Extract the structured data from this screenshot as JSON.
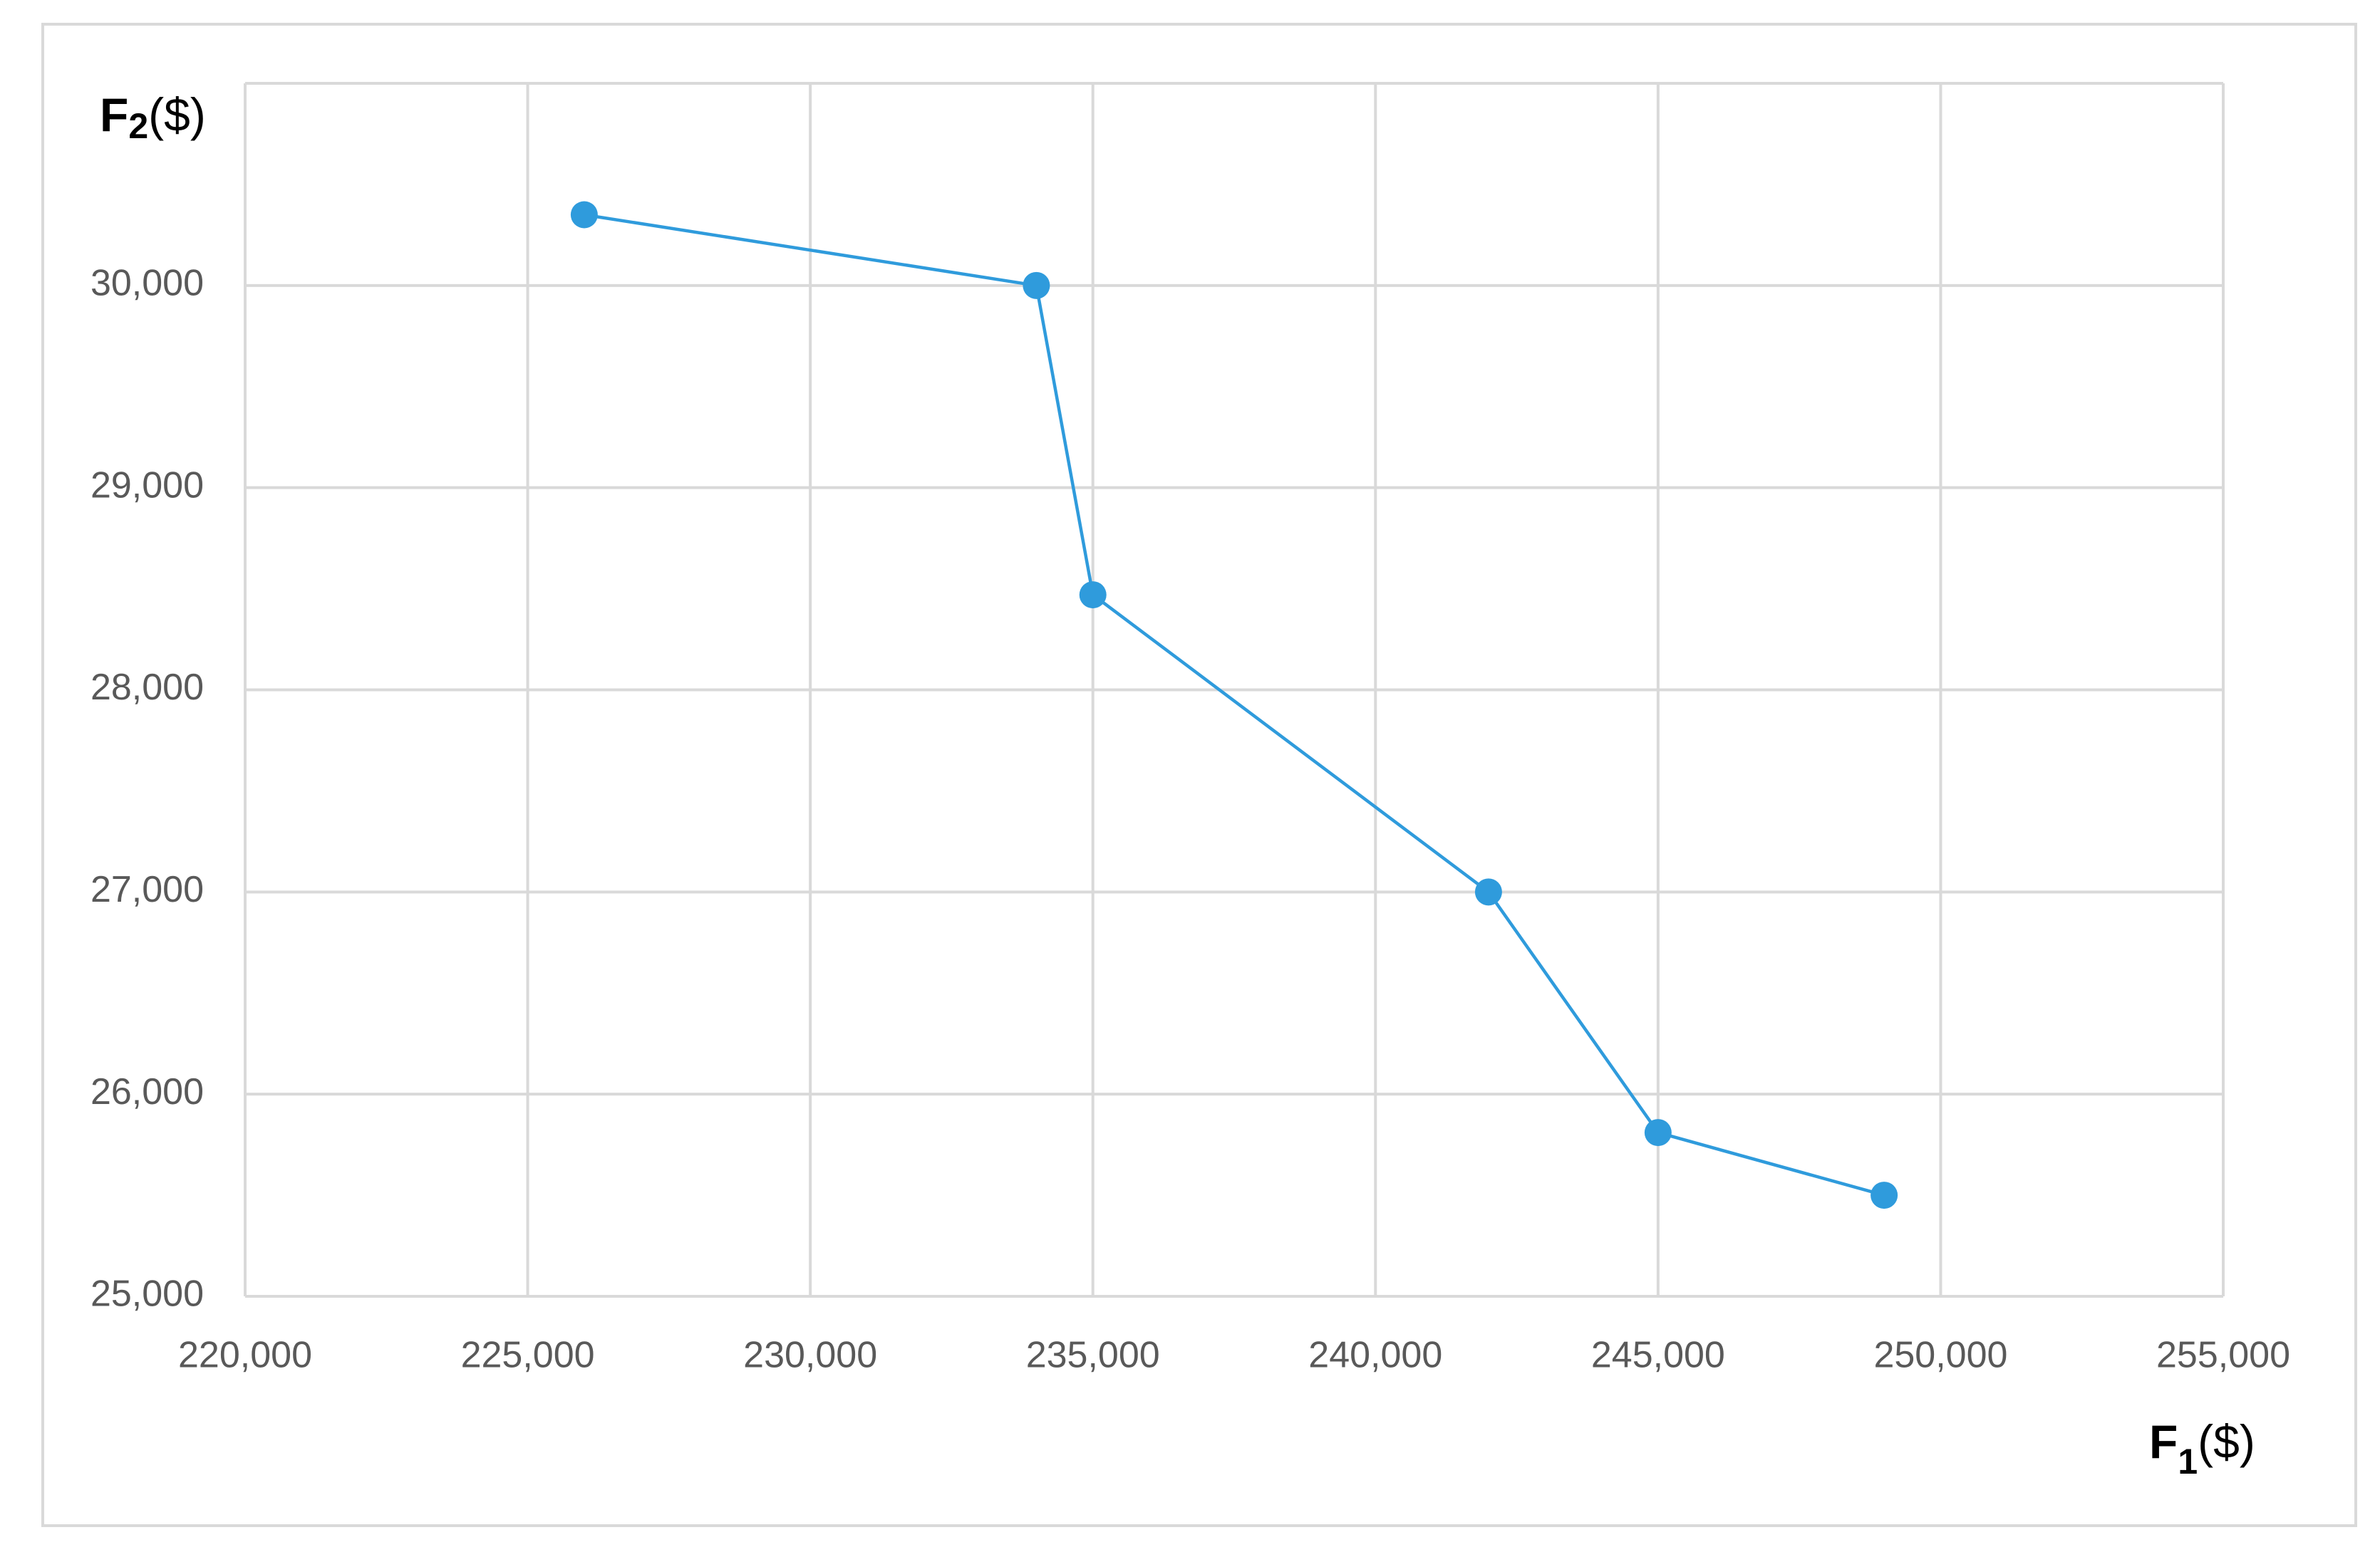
{
  "chart_data": {
    "type": "line",
    "x": [
      226000,
      234000,
      235000,
      242000,
      245000,
      249000
    ],
    "series": [
      {
        "color": "#2f9bdc",
        "values": [
          30350,
          30000,
          28470,
          27000,
          25810,
          25500
        ]
      }
    ],
    "xlim": [
      220000,
      255000
    ],
    "xticks": [
      {
        "value": 220000,
        "label": "220,000"
      },
      {
        "value": 225000,
        "label": "225,000"
      },
      {
        "value": 230000,
        "label": "230,000"
      },
      {
        "value": 235000,
        "label": "235,000"
      },
      {
        "value": 240000,
        "label": "240,000"
      },
      {
        "value": 245000,
        "label": "245,000"
      },
      {
        "value": 250000,
        "label": "250,000"
      },
      {
        "value": 255000,
        "label": "255,000"
      }
    ],
    "ylim": [
      25000,
      31000
    ],
    "yticks": [
      {
        "value": 25000,
        "label": "25,000"
      },
      {
        "value": 26000,
        "label": "26,000"
      },
      {
        "value": 27000,
        "label": "27,000"
      },
      {
        "value": 28000,
        "label": "28,000"
      },
      {
        "value": 29000,
        "label": "29,000"
      },
      {
        "value": 30000,
        "label": "30,000"
      }
    ],
    "grid": true,
    "x_label": {
      "main": "F",
      "sub": "1",
      "unit": "($)"
    },
    "y_label": {
      "main": "F",
      "sub": "2",
      "unit": "($)"
    }
  }
}
